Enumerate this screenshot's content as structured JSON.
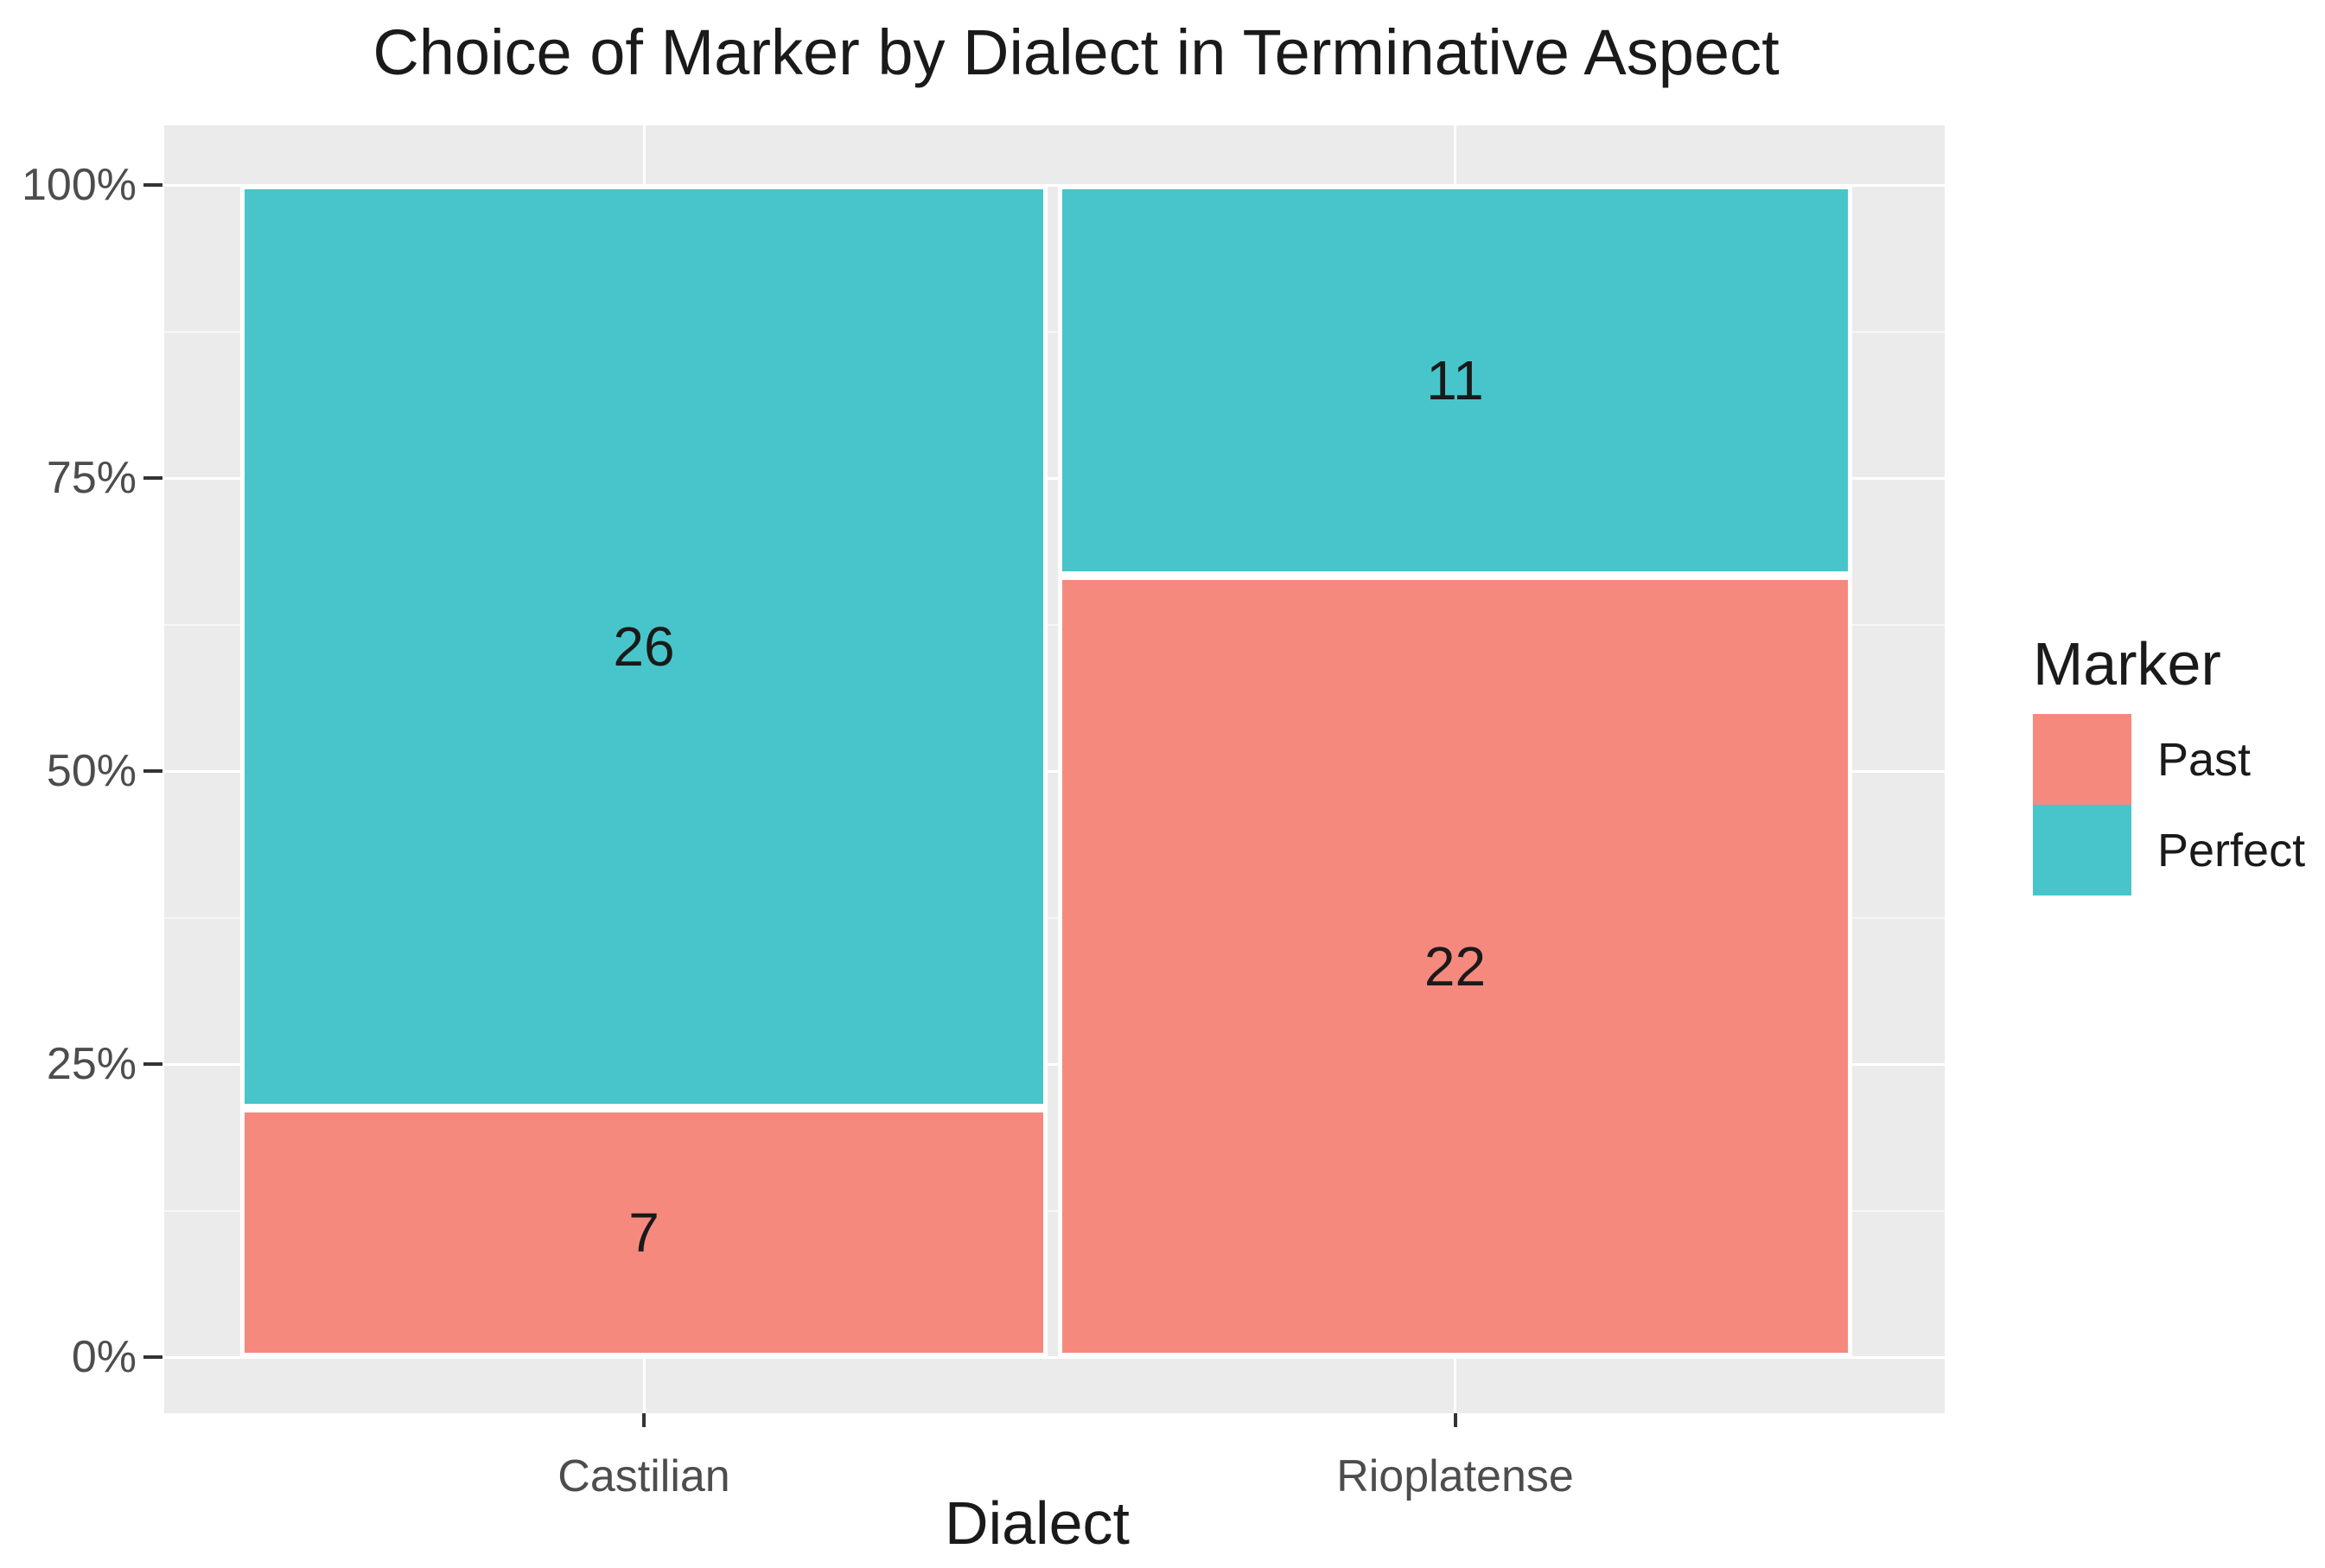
{
  "chart_data": {
    "type": "bar",
    "subtype": "stacked-percent-fill",
    "title": "Choice of Marker by Dialect in Terminative Aspect",
    "xlabel": "Dialect",
    "ylabel": "",
    "legend_title": "Marker",
    "legend_position": "right",
    "categories": [
      "Castilian",
      "Rioplatense"
    ],
    "series": [
      {
        "name": "Past",
        "color": "#F6897E",
        "values": [
          7,
          22
        ]
      },
      {
        "name": "Perfect",
        "color": "#48C5CA",
        "values": [
          26,
          11
        ]
      }
    ],
    "stack_order_bottom_to_top": [
      "Past",
      "Perfect"
    ],
    "y_ticks": [
      {
        "pct": 0,
        "label": "0%"
      },
      {
        "pct": 25,
        "label": "25%"
      },
      {
        "pct": 50,
        "label": "50%"
      },
      {
        "pct": 75,
        "label": "75%"
      },
      {
        "pct": 100,
        "label": "100%"
      }
    ],
    "y_minor_ticks_pct": [
      12.5,
      37.5,
      62.5,
      87.5
    ],
    "ylim": [
      0,
      100
    ],
    "grid": true
  },
  "colors": {
    "page_bg": "#FFFFFF",
    "panel_bg": "#EBEBEB",
    "grid_major": "#FFFFFF",
    "grid_minor": "#F6F6F6",
    "tick_mark": "#333333",
    "tick_label": "#4D4D4D",
    "text": "#1A1A1A",
    "segment_divider": "#FFFFFF"
  }
}
